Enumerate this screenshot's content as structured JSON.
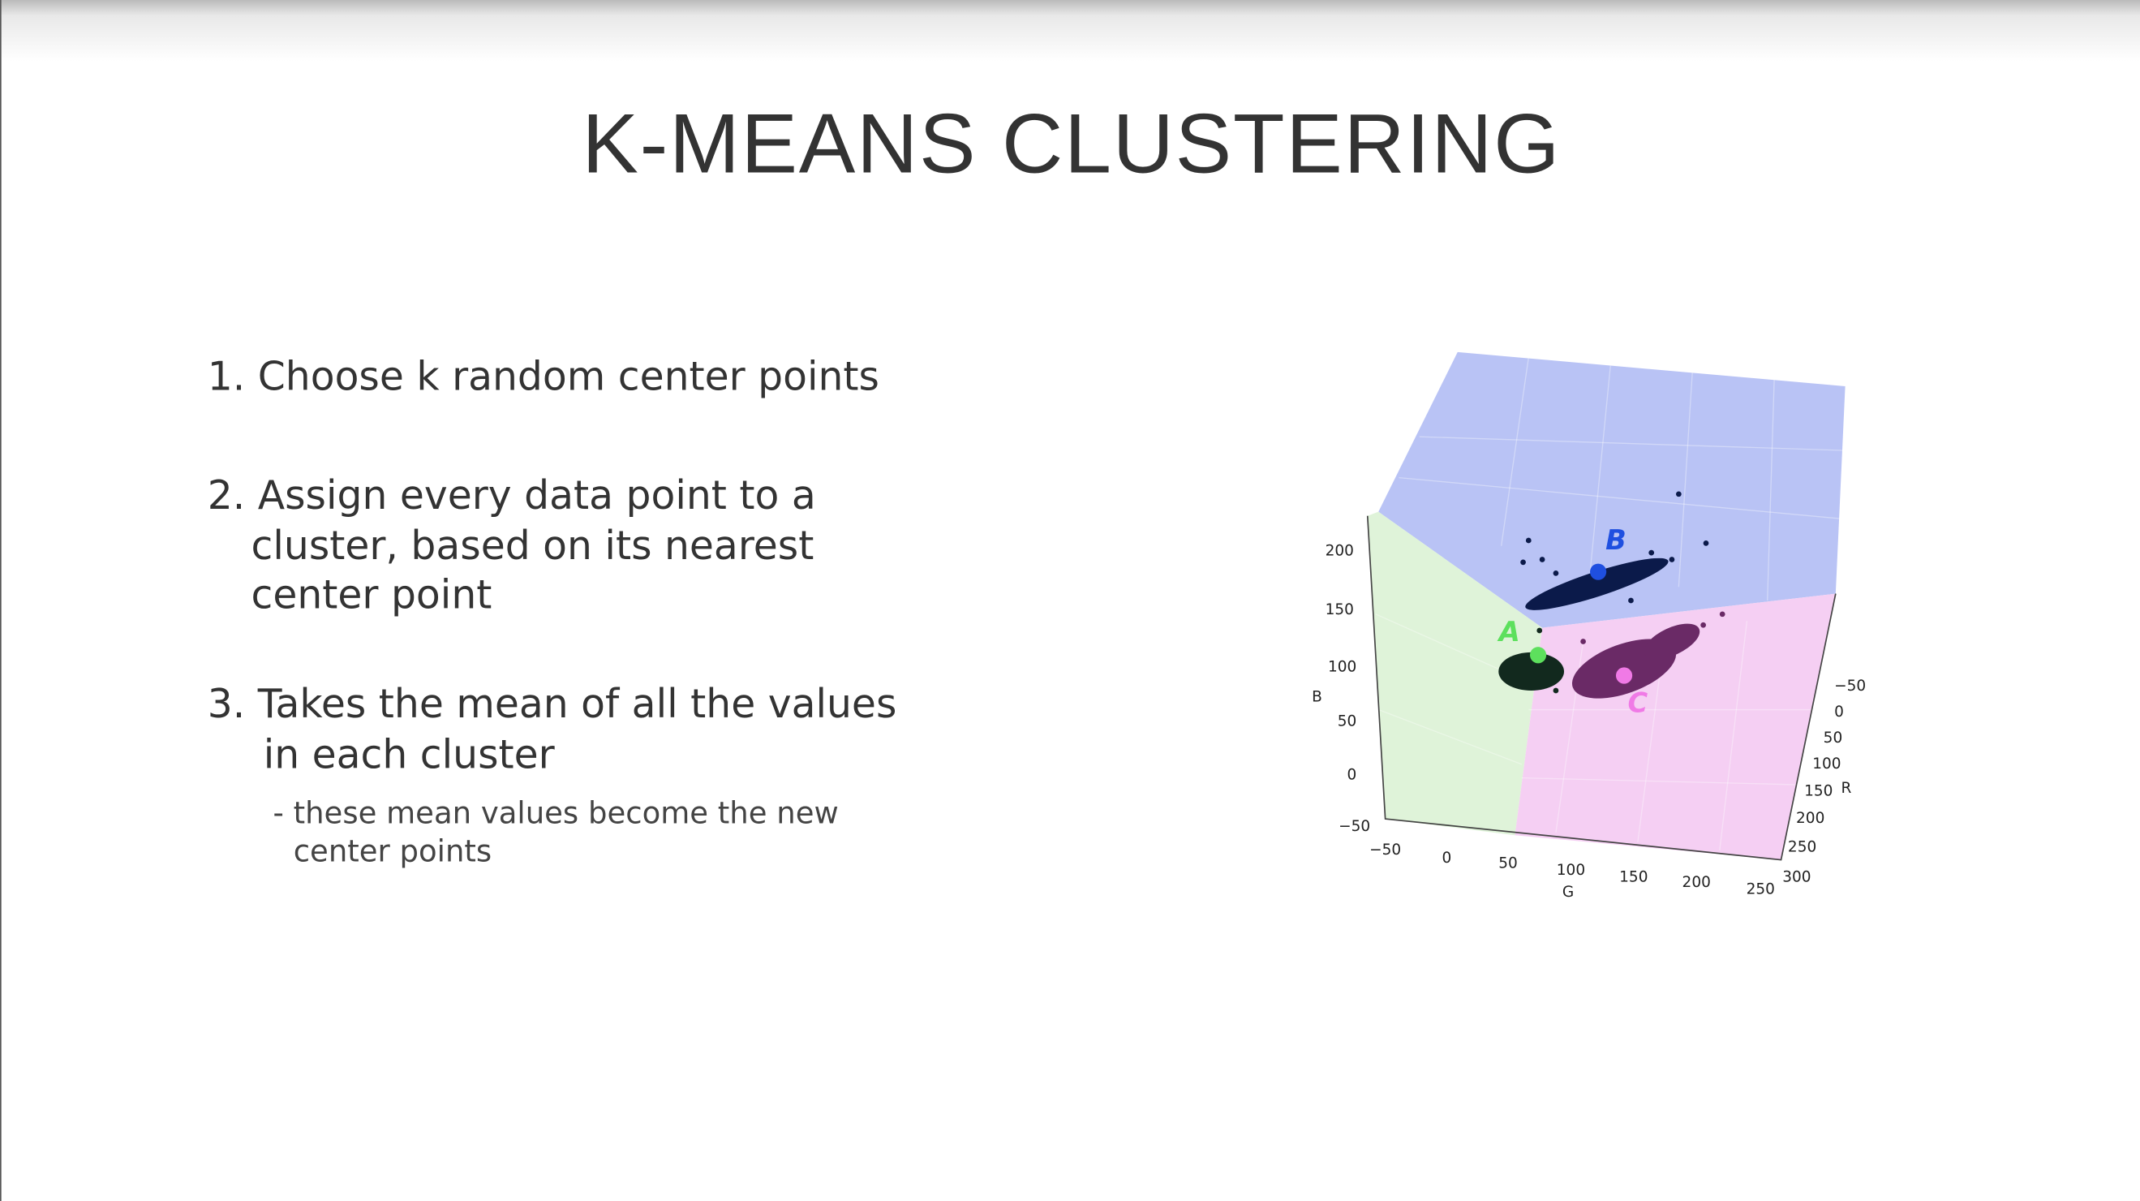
{
  "slide": {
    "title": "K-MEANS CLUSTERING",
    "steps": [
      {
        "lines": [
          "1. Choose k random center points"
        ]
      },
      {
        "lines": [
          "2. Assign every data point to a",
          "cluster, based on its nearest",
          "center point"
        ]
      },
      {
        "lines": [
          "3. Takes the mean of all the values",
          "in each cluster"
        ],
        "note": [
          "- these mean values become the new",
          "center points"
        ]
      }
    ],
    "figure": {
      "b_axis": {
        "label": "B",
        "ticks": [
          "200",
          "150",
          "100",
          "50",
          "0",
          "−50"
        ]
      },
      "g_axis": {
        "label": "G",
        "ticks": [
          "−50",
          "0",
          "50",
          "100",
          "150",
          "200",
          "250"
        ]
      },
      "r_axis": {
        "label": "R",
        "ticks": [
          "−50",
          "0",
          "50",
          "100",
          "150",
          "200",
          "250",
          "300"
        ]
      },
      "clusters": [
        "A",
        "B",
        "C"
      ]
    }
  }
}
